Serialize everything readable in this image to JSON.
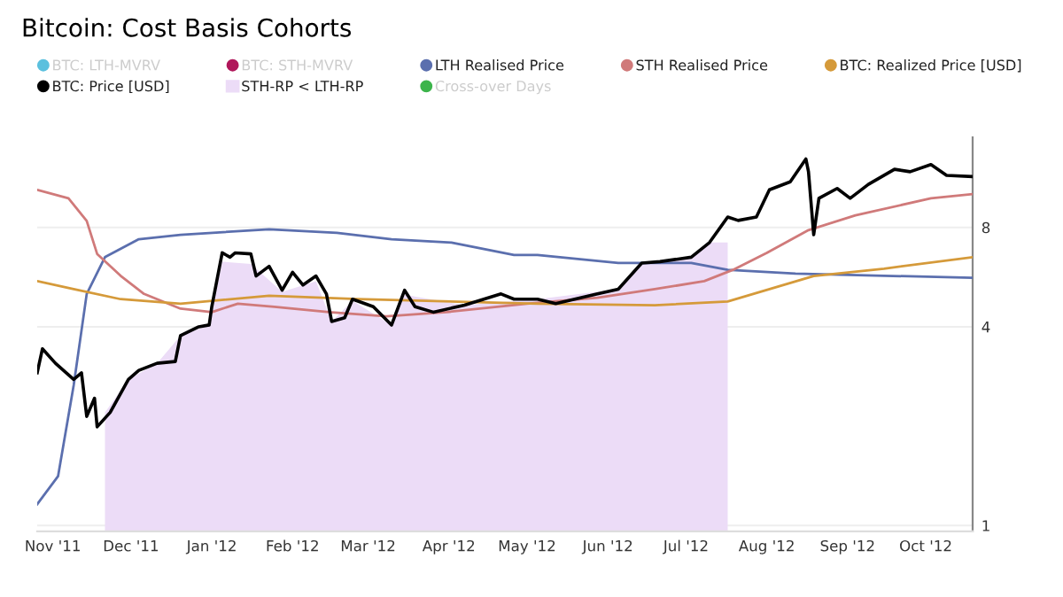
{
  "chart_data": {
    "type": "line",
    "title": "Bitcoin: Cost Basis Cohorts",
    "log": "y",
    "ylim": [
      0.96,
      15
    ],
    "yticks": [
      1,
      4,
      8
    ],
    "xlim": [
      "2011-10-26",
      "2012-10-19"
    ],
    "xticks": [
      {
        "value": "2011-11-01",
        "label": "Nov '11"
      },
      {
        "value": "2011-12-01",
        "label": "Dec '11"
      },
      {
        "value": "2012-01-01",
        "label": "Jan '12"
      },
      {
        "value": "2012-02-01",
        "label": "Feb '12"
      },
      {
        "value": "2012-03-01",
        "label": "Mar '12"
      },
      {
        "value": "2012-04-01",
        "label": "Apr '12"
      },
      {
        "value": "2012-05-01",
        "label": "May '12"
      },
      {
        "value": "2012-06-01",
        "label": "Jun '12"
      },
      {
        "value": "2012-07-01",
        "label": "Jul '12"
      },
      {
        "value": "2012-08-01",
        "label": "Aug '12"
      },
      {
        "value": "2012-09-01",
        "label": "Sep '12"
      },
      {
        "value": "2012-10-01",
        "label": "Oct '12"
      }
    ],
    "grid": "y",
    "legend": "top",
    "series": [
      {
        "name": "BTC: LTH-MVRV",
        "color": "#5bc0de"
      },
      {
        "name": "BTC: STH-MVRV",
        "color": "#b0175a"
      },
      {
        "name": "LTH Realised Price",
        "color": "#5b6fae",
        "x": [
          "2011-10-26",
          "2011-11-03",
          "2011-11-09",
          "2011-11-14",
          "2011-11-21",
          "2011-12-04",
          "2011-12-20",
          "2012-01-23",
          "2012-02-18",
          "2012-03-10",
          "2012-04-02",
          "2012-04-26",
          "2012-05-05",
          "2012-06-05",
          "2012-07-03",
          "2012-07-17",
          "2012-08-12",
          "2012-09-15",
          "2012-10-19"
        ],
        "values": [
          1.16,
          1.41,
          2.66,
          5.03,
          6.5,
          7.37,
          7.6,
          7.9,
          7.7,
          7.37,
          7.2,
          6.6,
          6.6,
          6.24,
          6.24,
          5.95,
          5.8,
          5.71,
          5.63
        ]
      },
      {
        "name": "STH Realised Price",
        "color": "#d07a7a",
        "x": [
          "2011-10-26",
          "2011-11-07",
          "2011-11-14",
          "2011-11-18",
          "2011-11-27",
          "2011-12-06",
          "2011-12-20",
          "2012-01-01",
          "2012-01-11",
          "2012-01-25",
          "2012-02-15",
          "2012-03-08",
          "2012-03-31",
          "2012-05-01",
          "2012-05-28",
          "2012-06-19",
          "2012-07-08",
          "2012-07-19",
          "2012-08-01",
          "2012-08-17",
          "2012-09-04",
          "2012-10-03",
          "2012-10-19"
        ],
        "values": [
          10.4,
          9.8,
          8.37,
          6.65,
          5.71,
          5.03,
          4.54,
          4.43,
          4.7,
          4.6,
          4.43,
          4.3,
          4.43,
          4.7,
          4.9,
          5.2,
          5.5,
          5.95,
          6.7,
          7.85,
          8.7,
          9.8,
          10.1
        ]
      },
      {
        "name": "BTC: Realized Price [USD]",
        "color": "#d59a3a",
        "x": [
          "2011-10-26",
          "2011-11-09",
          "2011-11-27",
          "2011-12-20",
          "2012-01-23",
          "2012-02-26",
          "2012-05-05",
          "2012-06-19",
          "2012-07-17",
          "2012-08-19",
          "2012-09-15",
          "2012-10-19"
        ],
        "values": [
          5.5,
          5.2,
          4.85,
          4.7,
          4.97,
          4.85,
          4.7,
          4.65,
          4.77,
          5.7,
          6.0,
          6.5
        ]
      },
      {
        "name": "BTC: Price [USD]",
        "color": "#000000",
        "x": [
          "2011-10-26",
          "2011-10-28",
          "2011-11-02",
          "2011-11-09",
          "2011-11-12",
          "2011-11-14",
          "2011-11-17",
          "2011-11-18",
          "2011-11-23",
          "2011-11-30",
          "2011-12-04",
          "2011-12-11",
          "2011-12-18",
          "2011-12-20",
          "2011-12-27",
          "2011-12-31",
          "2012-01-01",
          "2012-01-05",
          "2012-01-08",
          "2012-01-10",
          "2012-01-16",
          "2012-01-18",
          "2012-01-23",
          "2012-01-28",
          "2012-02-01",
          "2012-02-05",
          "2012-02-10",
          "2012-02-14",
          "2012-02-16",
          "2012-02-21",
          "2012-02-24",
          "2012-03-03",
          "2012-03-10",
          "2012-03-15",
          "2012-03-19",
          "2012-03-26",
          "2012-04-07",
          "2012-04-21",
          "2012-04-26",
          "2012-05-05",
          "2012-05-12",
          "2012-05-28",
          "2012-06-05",
          "2012-06-14",
          "2012-06-21",
          "2012-07-03",
          "2012-07-10",
          "2012-07-17",
          "2012-07-21",
          "2012-07-28",
          "2012-08-02",
          "2012-08-10",
          "2012-08-16",
          "2012-08-17",
          "2012-08-19",
          "2012-08-21",
          "2012-08-28",
          "2012-09-02",
          "2012-09-09",
          "2012-09-19",
          "2012-09-25",
          "2012-10-03",
          "2012-10-09",
          "2012-10-19"
        ],
        "values": [
          2.9,
          3.43,
          3.1,
          2.77,
          2.9,
          2.14,
          2.43,
          1.99,
          2.2,
          2.77,
          2.95,
          3.1,
          3.14,
          3.76,
          4.0,
          4.05,
          4.6,
          6.7,
          6.5,
          6.7,
          6.65,
          5.7,
          6.1,
          5.16,
          5.85,
          5.35,
          5.7,
          5.03,
          4.15,
          4.26,
          4.85,
          4.6,
          4.05,
          5.16,
          4.6,
          4.43,
          4.65,
          5.03,
          4.85,
          4.85,
          4.7,
          5.03,
          5.2,
          6.24,
          6.3,
          6.5,
          7.2,
          8.6,
          8.4,
          8.6,
          10.4,
          11.0,
          12.9,
          11.8,
          7.6,
          9.8,
          10.5,
          9.8,
          10.8,
          12.0,
          11.8,
          12.4,
          11.5,
          11.4
        ]
      },
      {
        "name": "STH-RP < LTH-RP",
        "type": "area",
        "color": "#ecdcf7",
        "x": [
          "2011-11-21",
          "2011-11-30",
          "2011-12-11",
          "2011-12-20",
          "2011-12-31",
          "2012-01-05",
          "2012-01-16",
          "2012-01-28",
          "2012-02-10",
          "2012-02-16",
          "2012-02-24",
          "2012-03-10",
          "2012-03-15",
          "2012-04-07",
          "2012-05-05",
          "2012-06-05",
          "2012-06-14",
          "2012-07-03",
          "2012-07-10",
          "2012-07-17"
        ],
        "values": [
          2.2,
          2.77,
          3.1,
          3.76,
          4.05,
          6.3,
          6.2,
          5.1,
          5.5,
          4.15,
          4.8,
          4.05,
          5.0,
          4.65,
          4.85,
          5.2,
          6.2,
          6.5,
          7.2,
          7.2
        ]
      },
      {
        "name": "Cross-over Days",
        "color": "#3cb44b"
      }
    ]
  }
}
